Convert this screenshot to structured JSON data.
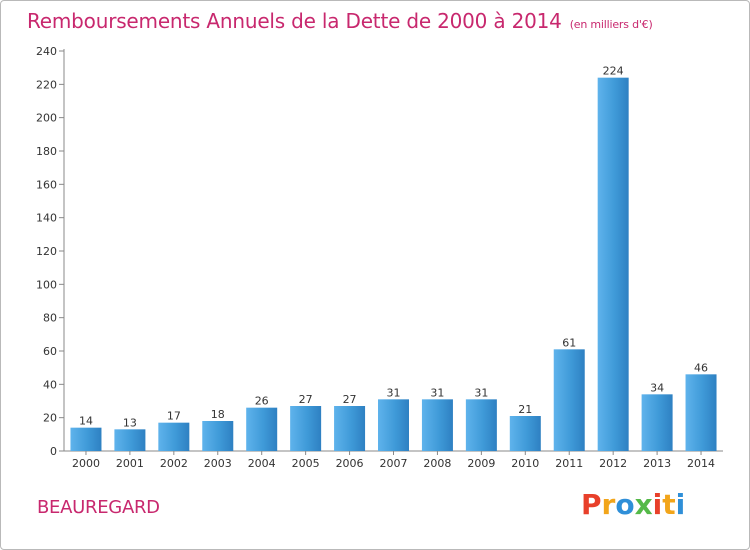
{
  "header": {
    "title": "Remboursements Annuels de la Dette de 2000 à 2014",
    "subtitle": "(en milliers d'€)"
  },
  "footer": {
    "commune": "BEAUREGARD",
    "logo_text": "Proxiti"
  },
  "colors": {
    "title": "#c8286e",
    "bar": "#3f9ad8",
    "bar_light": "#64b6ee",
    "bar_dark": "#2d7fbf",
    "logo_letters": [
      "#e8402a",
      "#f2a51a",
      "#2f8fd8",
      "#54b948",
      "#e8402a",
      "#f2a51a",
      "#2f8fd8"
    ]
  },
  "chart_data": {
    "type": "bar",
    "title": "Remboursements Annuels de la Dette de 2000 à 2014",
    "subtitle": "(en milliers d'€)",
    "xlabel": "",
    "ylabel": "",
    "categories": [
      "2000",
      "2001",
      "2002",
      "2003",
      "2004",
      "2005",
      "2006",
      "2007",
      "2008",
      "2009",
      "2010",
      "2011",
      "2012",
      "2013",
      "2014"
    ],
    "values": [
      14,
      13,
      17,
      18,
      26,
      27,
      27,
      31,
      31,
      31,
      21,
      61,
      224,
      34,
      46
    ],
    "ylim": [
      0,
      240
    ],
    "yticks": [
      0,
      20,
      40,
      60,
      80,
      100,
      120,
      140,
      160,
      180,
      200,
      220,
      240
    ],
    "grid": false,
    "legend": "none",
    "data_labels": true
  }
}
